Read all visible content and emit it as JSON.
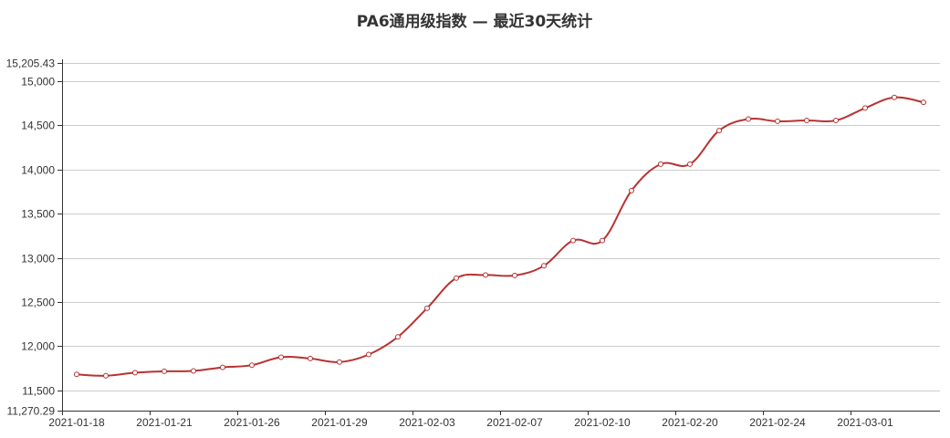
{
  "chart_data": {
    "type": "line",
    "title": "PA6通用级指数    —    最近30天统计",
    "xlabel": "",
    "ylabel": "",
    "ylim": [
      11270.29,
      15205.43
    ],
    "y_ticks": [
      11500,
      12000,
      12500,
      13000,
      13500,
      14000,
      14500,
      15000
    ],
    "y_tick_labels": [
      "11,270.29",
      "11,500",
      "12,000",
      "12,500",
      "13,000",
      "13,500",
      "14,000",
      "14,500",
      "15,000",
      "15,205.43"
    ],
    "x_label_dates": [
      "2021-01-18",
      "2021-01-21",
      "2021-01-26",
      "2021-01-29",
      "2021-02-03",
      "2021-02-07",
      "2021-02-10",
      "2021-02-20",
      "2021-02-24",
      "2021-03-01"
    ],
    "grid": true,
    "legend": "none",
    "colors": {
      "line": "#b83232",
      "grid": "#cccccc",
      "axis": "#333333",
      "marker_fill": "#ffffff"
    },
    "series": [
      {
        "x": [
          "2021-01-18",
          "2021-01-19",
          "2021-01-20",
          "2021-01-21",
          "2021-01-22",
          "2021-01-25",
          "2021-01-26",
          "2021-01-27",
          "2021-01-28",
          "2021-01-29",
          "2021-02-01",
          "2021-02-02",
          "2021-02-03",
          "2021-02-04",
          "2021-02-05",
          "2021-02-07",
          "2021-02-08",
          "2021-02-09",
          "2021-02-10",
          "2021-02-18",
          "2021-02-19",
          "2021-02-20",
          "2021-02-22",
          "2021-02-23",
          "2021-02-24",
          "2021-02-25",
          "2021-02-26",
          "2021-03-01",
          "2021-03-02",
          "2021-03-03"
        ],
        "values": [
          11680,
          11665,
          11700,
          11715,
          11720,
          11760,
          11785,
          11875,
          11860,
          11820,
          11905,
          12105,
          12430,
          12770,
          12805,
          12800,
          12910,
          13195,
          13195,
          13760,
          14060,
          14060,
          14440,
          14570,
          14545,
          14555,
          14555,
          14695,
          14815,
          14760
        ]
      }
    ]
  }
}
